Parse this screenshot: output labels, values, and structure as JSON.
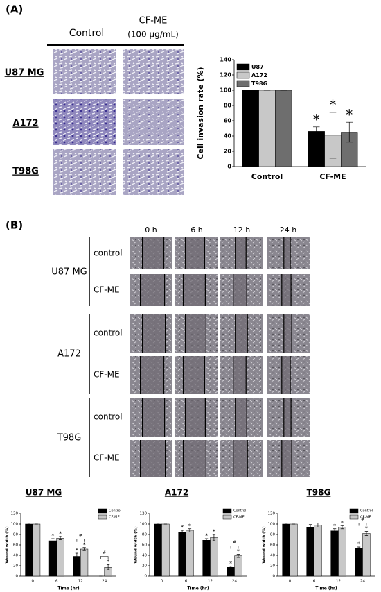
{
  "panel_a": {
    "label": "(A)",
    "columns": [
      "Control",
      "CF-ME"
    ],
    "column_note": "(100 μg/mL)",
    "rows": [
      "U87 MG",
      "A172",
      "T98G"
    ]
  },
  "panel_b": {
    "label": "(B)",
    "times": [
      "0 h",
      "6 h",
      "12 h",
      "24 h"
    ],
    "groups": [
      {
        "name": "U87 MG",
        "conditions": [
          "control",
          "CF-ME"
        ]
      },
      {
        "name": "A172",
        "conditions": [
          "control",
          "CF-ME"
        ]
      },
      {
        "name": "T98G",
        "conditions": [
          "control",
          "CF-ME"
        ]
      }
    ]
  },
  "chart_data": [
    {
      "type": "bar",
      "y_label": "Cell invasion rate (%)",
      "categories": [
        "Control",
        "CF-ME"
      ],
      "series": [
        {
          "name": "U87",
          "color": "#000000",
          "values": [
            100,
            46
          ],
          "errors": [
            0,
            6
          ],
          "marks": [
            null,
            "*"
          ]
        },
        {
          "name": "A172",
          "color": "#c8c8c8",
          "values": [
            100,
            41
          ],
          "errors": [
            0,
            30
          ],
          "marks": [
            null,
            "*"
          ]
        },
        {
          "name": "T98G",
          "color": "#6e6e6e",
          "values": [
            100,
            45
          ],
          "errors": [
            0,
            13
          ],
          "marks": [
            null,
            "*"
          ]
        }
      ],
      "ylim": [
        0,
        140
      ],
      "yticks": [
        0,
        20,
        40,
        60,
        80,
        100,
        120,
        140
      ],
      "legend": "upper left",
      "grid": false
    },
    {
      "type": "bar",
      "title": "U87 MG",
      "x_label": "Time (hr)",
      "y_label": "Wound width (%)",
      "categories": [
        "0",
        "6",
        "12",
        "24"
      ],
      "series": [
        {
          "name": "Control",
          "color": "#000000",
          "values": [
            100,
            68,
            38,
            0
          ],
          "errors": [
            0,
            4,
            6,
            0
          ],
          "marks": [
            null,
            "*",
            "*",
            null
          ]
        },
        {
          "name": "CF-ME",
          "color": "#c8c8c8",
          "values": [
            100,
            73,
            52,
            17
          ],
          "errors": [
            0,
            3,
            3,
            5
          ],
          "marks": [
            null,
            "*",
            "*",
            "*"
          ]
        }
      ],
      "comparison_labels": [
        null,
        null,
        "#",
        "#"
      ],
      "ylim": [
        0,
        120
      ],
      "yticks": [
        0,
        20,
        40,
        60,
        80,
        100,
        120
      ],
      "legend": "upper right",
      "grid": false
    },
    {
      "type": "bar",
      "title": "A172",
      "x_label": "Time (hr)",
      "y_label": "Wound width (%)",
      "categories": [
        "0",
        "6",
        "12",
        "24"
      ],
      "series": [
        {
          "name": "Control",
          "color": "#000000",
          "values": [
            100,
            85,
            69,
            17
          ],
          "errors": [
            0,
            3,
            3,
            2
          ],
          "marks": [
            null,
            "*",
            "*",
            "*"
          ]
        },
        {
          "name": "CF-ME",
          "color": "#c8c8c8",
          "values": [
            100,
            88,
            74,
            39
          ],
          "errors": [
            0,
            3,
            6,
            3
          ],
          "marks": [
            null,
            "*",
            "*",
            "*"
          ]
        }
      ],
      "comparison_labels": [
        null,
        null,
        null,
        "#"
      ],
      "ylim": [
        0,
        120
      ],
      "yticks": [
        0,
        20,
        40,
        60,
        80,
        100,
        120
      ],
      "legend": "upper right",
      "grid": false
    },
    {
      "type": "bar",
      "title": "T98G",
      "x_label": "Time (hr)",
      "y_label": "Wound width (%)",
      "categories": [
        "0",
        "6",
        "12",
        "24"
      ],
      "series": [
        {
          "name": "Control",
          "color": "#000000",
          "values": [
            100,
            94,
            87,
            53
          ],
          "errors": [
            0,
            5,
            4,
            3
          ],
          "marks": [
            null,
            null,
            "*",
            "*"
          ]
        },
        {
          "name": "CF-ME",
          "color": "#c8c8c8",
          "values": [
            100,
            98,
            94,
            82
          ],
          "errors": [
            0,
            4,
            3,
            4
          ],
          "marks": [
            null,
            null,
            "*",
            "*"
          ]
        }
      ],
      "comparison_labels": [
        null,
        null,
        null,
        "#"
      ],
      "ylim": [
        0,
        120
      ],
      "yticks": [
        0,
        20,
        40,
        60,
        80,
        100,
        120
      ],
      "legend": "upper right",
      "grid": false
    }
  ]
}
